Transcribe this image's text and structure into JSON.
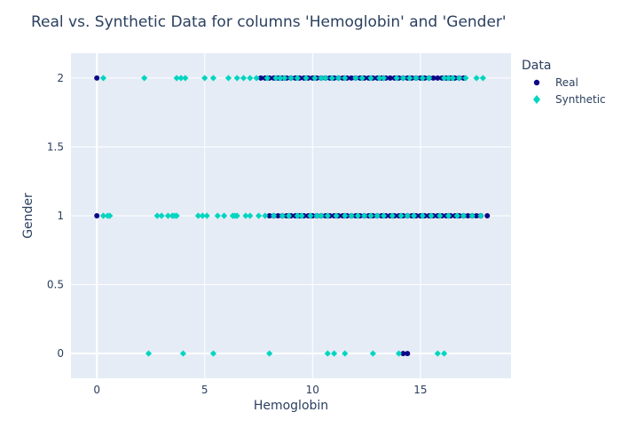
{
  "chart_data": {
    "type": "scatter",
    "title": "Real vs. Synthetic Data for columns 'Hemoglobin' and 'Gender'",
    "xlabel": "Hemoglobin",
    "ylabel": "Gender",
    "xlim": [
      -1.2,
      19.2
    ],
    "ylim": [
      -0.18,
      2.18
    ],
    "x_ticks": [
      0,
      5,
      10,
      15
    ],
    "x_tick_labels": [
      "0",
      "5",
      "10",
      "15"
    ],
    "y_ticks": [
      0,
      0.5,
      1,
      1.5,
      2
    ],
    "y_tick_labels": [
      "0",
      "0.5",
      "1",
      "1.5",
      "2"
    ],
    "grid": true,
    "legend": {
      "title": "Data",
      "placement": "right"
    },
    "series": [
      {
        "name": "Real",
        "color": "#0d0887",
        "marker": "circle",
        "points": [
          [
            0,
            2
          ],
          [
            7.6,
            2
          ],
          [
            7.8,
            2
          ],
          [
            8.0,
            2
          ],
          [
            8.2,
            2
          ],
          [
            8.4,
            2
          ],
          [
            8.6,
            2
          ],
          [
            8.8,
            2
          ],
          [
            9.0,
            2
          ],
          [
            9.2,
            2
          ],
          [
            9.4,
            2
          ],
          [
            9.6,
            2
          ],
          [
            9.8,
            2
          ],
          [
            10.0,
            2
          ],
          [
            10.2,
            2
          ],
          [
            10.4,
            2
          ],
          [
            10.6,
            2
          ],
          [
            10.8,
            2
          ],
          [
            11.0,
            2
          ],
          [
            11.2,
            2
          ],
          [
            11.4,
            2
          ],
          [
            11.6,
            2
          ],
          [
            11.8,
            2
          ],
          [
            12.0,
            2
          ],
          [
            12.2,
            2
          ],
          [
            12.4,
            2
          ],
          [
            12.6,
            2
          ],
          [
            12.8,
            2
          ],
          [
            13.0,
            2
          ],
          [
            13.2,
            2
          ],
          [
            13.4,
            2
          ],
          [
            13.6,
            2
          ],
          [
            13.8,
            2
          ],
          [
            14.0,
            2
          ],
          [
            14.2,
            2
          ],
          [
            14.4,
            2
          ],
          [
            14.6,
            2
          ],
          [
            14.8,
            2
          ],
          [
            15.0,
            2
          ],
          [
            15.2,
            2
          ],
          [
            15.4,
            2
          ],
          [
            15.6,
            2
          ],
          [
            15.8,
            2
          ],
          [
            16.0,
            2
          ],
          [
            16.2,
            2
          ],
          [
            16.4,
            2
          ],
          [
            16.6,
            2
          ],
          [
            16.8,
            2
          ],
          [
            17.0,
            2
          ],
          [
            0,
            1
          ],
          [
            8.0,
            1
          ],
          [
            8.2,
            1
          ],
          [
            8.4,
            1
          ],
          [
            8.6,
            1
          ],
          [
            8.8,
            1
          ],
          [
            9.0,
            1
          ],
          [
            9.2,
            1
          ],
          [
            9.4,
            1
          ],
          [
            9.6,
            1
          ],
          [
            9.8,
            1
          ],
          [
            10.0,
            1
          ],
          [
            10.2,
            1
          ],
          [
            10.4,
            1
          ],
          [
            10.6,
            1
          ],
          [
            10.8,
            1
          ],
          [
            11.0,
            1
          ],
          [
            11.2,
            1
          ],
          [
            11.4,
            1
          ],
          [
            11.6,
            1
          ],
          [
            11.8,
            1
          ],
          [
            12.0,
            1
          ],
          [
            12.2,
            1
          ],
          [
            12.4,
            1
          ],
          [
            12.6,
            1
          ],
          [
            12.8,
            1
          ],
          [
            13.0,
            1
          ],
          [
            13.2,
            1
          ],
          [
            13.4,
            1
          ],
          [
            13.6,
            1
          ],
          [
            13.8,
            1
          ],
          [
            14.0,
            1
          ],
          [
            14.2,
            1
          ],
          [
            14.4,
            1
          ],
          [
            14.6,
            1
          ],
          [
            14.8,
            1
          ],
          [
            15.0,
            1
          ],
          [
            15.2,
            1
          ],
          [
            15.4,
            1
          ],
          [
            15.6,
            1
          ],
          [
            15.8,
            1
          ],
          [
            16.0,
            1
          ],
          [
            16.2,
            1
          ],
          [
            16.4,
            1
          ],
          [
            16.6,
            1
          ],
          [
            16.8,
            1
          ],
          [
            17.0,
            1
          ],
          [
            17.2,
            1
          ],
          [
            17.4,
            1
          ],
          [
            17.6,
            1
          ],
          [
            17.8,
            1
          ],
          [
            18.1,
            1
          ],
          [
            14.2,
            0
          ],
          [
            14.4,
            0
          ]
        ]
      },
      {
        "name": "Synthetic",
        "color": "#00d5c0",
        "marker": "diamond",
        "points": [
          [
            0.3,
            2
          ],
          [
            2.2,
            2
          ],
          [
            3.7,
            2
          ],
          [
            3.9,
            2
          ],
          [
            4.1,
            2
          ],
          [
            5.0,
            2
          ],
          [
            5.4,
            2
          ],
          [
            6.1,
            2
          ],
          [
            6.5,
            2
          ],
          [
            6.8,
            2
          ],
          [
            7.1,
            2
          ],
          [
            7.4,
            2
          ],
          [
            7.9,
            2
          ],
          [
            8.3,
            2
          ],
          [
            8.5,
            2
          ],
          [
            8.7,
            2
          ],
          [
            9.0,
            2
          ],
          [
            9.3,
            2
          ],
          [
            9.7,
            2
          ],
          [
            10.1,
            2
          ],
          [
            10.4,
            2
          ],
          [
            10.6,
            2
          ],
          [
            10.9,
            2
          ],
          [
            11.2,
            2
          ],
          [
            11.5,
            2
          ],
          [
            12.0,
            2
          ],
          [
            12.3,
            2
          ],
          [
            12.7,
            2
          ],
          [
            13.1,
            2
          ],
          [
            13.3,
            2
          ],
          [
            13.9,
            2
          ],
          [
            14.2,
            2
          ],
          [
            14.5,
            2
          ],
          [
            14.8,
            2
          ],
          [
            15.1,
            2
          ],
          [
            15.4,
            2
          ],
          [
            16.1,
            2
          ],
          [
            16.3,
            2
          ],
          [
            16.5,
            2
          ],
          [
            16.8,
            2
          ],
          [
            17.1,
            2
          ],
          [
            17.6,
            2
          ],
          [
            17.9,
            2
          ],
          [
            0.3,
            1
          ],
          [
            0.5,
            1
          ],
          [
            0.6,
            1
          ],
          [
            2.8,
            1
          ],
          [
            3.0,
            1
          ],
          [
            3.3,
            1
          ],
          [
            3.5,
            1
          ],
          [
            3.6,
            1
          ],
          [
            3.7,
            1
          ],
          [
            4.7,
            1
          ],
          [
            4.9,
            1
          ],
          [
            5.1,
            1
          ],
          [
            5.6,
            1
          ],
          [
            5.9,
            1
          ],
          [
            6.3,
            1
          ],
          [
            6.4,
            1
          ],
          [
            6.5,
            1
          ],
          [
            6.9,
            1
          ],
          [
            7.1,
            1
          ],
          [
            7.5,
            1
          ],
          [
            7.8,
            1
          ],
          [
            8.2,
            1
          ],
          [
            8.6,
            1
          ],
          [
            8.9,
            1
          ],
          [
            9.3,
            1
          ],
          [
            9.5,
            1
          ],
          [
            9.9,
            1
          ],
          [
            10.2,
            1
          ],
          [
            10.4,
            1
          ],
          [
            10.7,
            1
          ],
          [
            11.1,
            1
          ],
          [
            11.5,
            1
          ],
          [
            11.8,
            1
          ],
          [
            12.1,
            1
          ],
          [
            12.4,
            1
          ],
          [
            12.7,
            1
          ],
          [
            13.0,
            1
          ],
          [
            13.3,
            1
          ],
          [
            13.7,
            1
          ],
          [
            14.1,
            1
          ],
          [
            14.4,
            1
          ],
          [
            14.7,
            1
          ],
          [
            15.1,
            1
          ],
          [
            15.5,
            1
          ],
          [
            15.9,
            1
          ],
          [
            16.3,
            1
          ],
          [
            16.7,
            1
          ],
          [
            17.0,
            1
          ],
          [
            17.4,
            1
          ],
          [
            17.8,
            1
          ],
          [
            2.4,
            0
          ],
          [
            4.0,
            0
          ],
          [
            5.4,
            0
          ],
          [
            8.0,
            0
          ],
          [
            10.7,
            0
          ],
          [
            11.0,
            0
          ],
          [
            11.5,
            0
          ],
          [
            12.8,
            0
          ],
          [
            14.0,
            0
          ],
          [
            15.8,
            0
          ],
          [
            16.1,
            0
          ]
        ]
      }
    ]
  }
}
